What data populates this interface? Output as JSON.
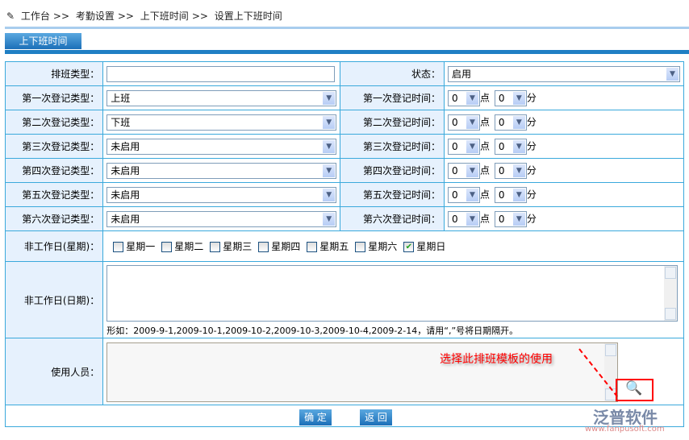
{
  "breadcrumb": [
    "工作台",
    ">>",
    "考勤设置",
    ">>",
    "上下班时间",
    ">>",
    "设置上下班时间"
  ],
  "tab": "上下班时间",
  "form": {
    "shift_type_label": "排班类型：",
    "shift_type_value": "",
    "status_label": "状态：",
    "status_value": "启用",
    "rows": [
      {
        "type_label": "第一次登记类型：",
        "type_value": "上班",
        "time_label": "第一次登记时间：",
        "hour": "0",
        "minute": "0"
      },
      {
        "type_label": "第二次登记类型：",
        "type_value": "下班",
        "time_label": "第二次登记时间：",
        "hour": "0",
        "minute": "0"
      },
      {
        "type_label": "第三次登记类型：",
        "type_value": "未启用",
        "time_label": "第三次登记时间：",
        "hour": "0",
        "minute": "0"
      },
      {
        "type_label": "第四次登记类型：",
        "type_value": "未启用",
        "time_label": "第四次登记时间：",
        "hour": "0",
        "minute": "0"
      },
      {
        "type_label": "第五次登记类型：",
        "type_value": "未启用",
        "time_label": "第五次登记时间：",
        "hour": "0",
        "minute": "0"
      },
      {
        "type_label": "第六次登记类型：",
        "type_value": "未启用",
        "time_label": "第六次登记时间：",
        "hour": "0",
        "minute": "0"
      }
    ],
    "hour_unit": "点",
    "minute_unit": "分",
    "weekday_label": "非工作日(星期)：",
    "weekdays": [
      {
        "label": "星期一",
        "checked": false
      },
      {
        "label": "星期二",
        "checked": false
      },
      {
        "label": "星期三",
        "checked": false
      },
      {
        "label": "星期四",
        "checked": false
      },
      {
        "label": "星期五",
        "checked": false
      },
      {
        "label": "星期六",
        "checked": false
      },
      {
        "label": "星期日",
        "checked": true
      }
    ],
    "date_label": "非工作日(日期)：",
    "date_hint": "形如：2009-9-1,2009-10-1,2009-10-2,2009-10-3,2009-10-4,2009-2-14，请用“,”号将日期隔开。",
    "users_label": "使用人员：",
    "annotation": "选择此排班模板的使用"
  },
  "buttons": {
    "ok": "确 定",
    "back": "返 回"
  },
  "watermark": {
    "brand": "泛普软件",
    "url": "www.fanpusoft.com"
  },
  "colors": {
    "accent": "#1f7fc4",
    "border": "#3aa9dc",
    "label_bg": "#e6f1fd",
    "annotation": "#ff0000"
  }
}
